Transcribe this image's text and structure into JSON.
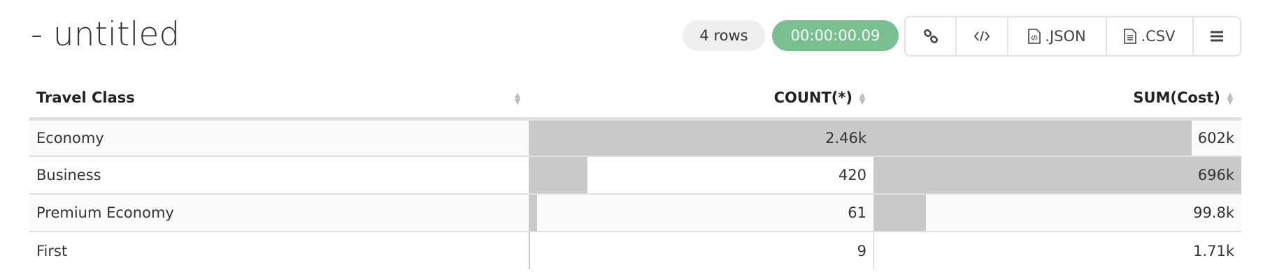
{
  "header": {
    "title": "- untitled",
    "row_count": "4 rows",
    "elapsed": "00:00:00.09"
  },
  "toolbar": {
    "buttons": [
      {
        "icon": "link-icon",
        "label": ""
      },
      {
        "icon": "code-icon",
        "label": ""
      },
      {
        "icon": "json-file-icon",
        "label": ".JSON"
      },
      {
        "icon": "csv-file-icon",
        "label": ".CSV"
      },
      {
        "icon": "menu-icon",
        "label": ""
      }
    ]
  },
  "colors": {
    "accent": "#78c08d",
    "bar": "#c9c9c9"
  },
  "table": {
    "columns": [
      "Travel Class",
      "COUNT(*)",
      "SUM(Cost)"
    ],
    "rows": [
      {
        "class": "Economy",
        "count": "2.46k",
        "count_value": 2460,
        "sum": "602k",
        "sum_value": 602000
      },
      {
        "class": "Business",
        "count": "420",
        "count_value": 420,
        "sum": "696k",
        "sum_value": 696000
      },
      {
        "class": "Premium Economy",
        "count": "61",
        "count_value": 61,
        "sum": "99.8k",
        "sum_value": 99800
      },
      {
        "class": "First",
        "count": "9",
        "count_value": 9,
        "sum": "1.71k",
        "sum_value": 1710
      }
    ]
  }
}
